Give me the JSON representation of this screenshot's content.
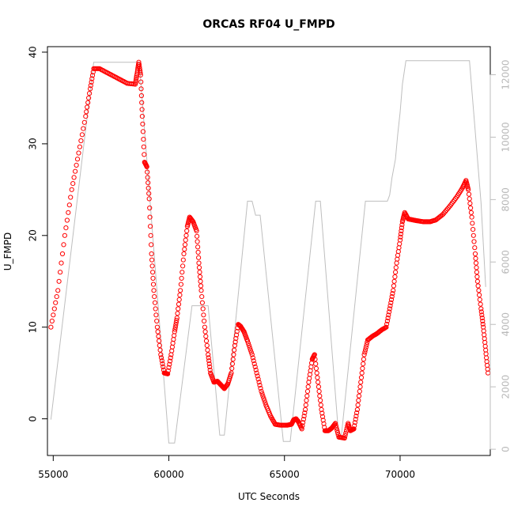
{
  "chart_data": {
    "type": "line",
    "title": "ORCAS RF04 U_FMPD",
    "xlabel": "UTC Seconds",
    "ylabel": "U_FMPD",
    "xlim": [
      54750,
      73900
    ],
    "ylim": [
      -4,
      40.6
    ],
    "y2lim": [
      -200,
      12900
    ],
    "x_ticks": [
      55000,
      60000,
      65000,
      70000
    ],
    "y_ticks": [
      0,
      10,
      20,
      30,
      40
    ],
    "y2_ticks": [
      0,
      2000,
      4000,
      6000,
      8000,
      10000,
      12000
    ],
    "colors": {
      "primary": "#ff0000",
      "secondary": "#bebebe"
    },
    "series": [
      {
        "axis": "left",
        "style": "circles",
        "points": [
          [
            54900,
            10
          ],
          [
            55200,
            14
          ],
          [
            55500,
            20
          ],
          [
            55800,
            25
          ],
          [
            56100,
            29
          ],
          [
            56400,
            33
          ],
          [
            56600,
            36
          ],
          [
            56750,
            38.2
          ],
          [
            57000,
            38.2
          ],
          [
            57300,
            37.8
          ],
          [
            57600,
            37.4
          ],
          [
            57900,
            37
          ],
          [
            58200,
            36.6
          ],
          [
            58550,
            36.5
          ],
          [
            58620,
            37.6
          ],
          [
            58700,
            38.9
          ],
          [
            58780,
            37.5
          ],
          [
            58850,
            33
          ],
          [
            58950,
            28
          ],
          [
            59050,
            27.5
          ],
          [
            59150,
            24
          ],
          [
            59250,
            18
          ],
          [
            59350,
            14
          ],
          [
            59500,
            10
          ],
          [
            59650,
            7
          ],
          [
            59800,
            5
          ],
          [
            59950,
            4.9
          ],
          [
            60100,
            7
          ],
          [
            60250,
            9.5
          ],
          [
            60350,
            11
          ],
          [
            60500,
            14
          ],
          [
            60650,
            18
          ],
          [
            60800,
            21
          ],
          [
            60900,
            22
          ],
          [
            61050,
            21.5
          ],
          [
            61200,
            20.5
          ],
          [
            61300,
            17
          ],
          [
            61400,
            14
          ],
          [
            61550,
            10
          ],
          [
            61700,
            7
          ],
          [
            61800,
            5
          ],
          [
            61950,
            4
          ],
          [
            62100,
            4.1
          ],
          [
            62250,
            3.7
          ],
          [
            62400,
            3.3
          ],
          [
            62550,
            3.8
          ],
          [
            62700,
            5
          ],
          [
            62850,
            8
          ],
          [
            63000,
            10.3
          ],
          [
            63100,
            10.1
          ],
          [
            63250,
            9.5
          ],
          [
            63400,
            8.5
          ],
          [
            63600,
            7
          ],
          [
            63800,
            5
          ],
          [
            64000,
            3
          ],
          [
            64200,
            1.5
          ],
          [
            64400,
            0.3
          ],
          [
            64600,
            -0.6
          ],
          [
            64850,
            -0.7
          ],
          [
            65100,
            -0.7
          ],
          [
            65300,
            -0.6
          ],
          [
            65400,
            -0.1
          ],
          [
            65500,
            0
          ],
          [
            65600,
            -0.3
          ],
          [
            65750,
            -1.1
          ],
          [
            65900,
            1
          ],
          [
            66050,
            4
          ],
          [
            66200,
            6.5
          ],
          [
            66300,
            7
          ],
          [
            66450,
            4
          ],
          [
            66600,
            1
          ],
          [
            66750,
            -1.3
          ],
          [
            66900,
            -1.3
          ],
          [
            67050,
            -1
          ],
          [
            67200,
            -0.5
          ],
          [
            67350,
            -2
          ],
          [
            67600,
            -2.1
          ],
          [
            67750,
            -0.5
          ],
          [
            67850,
            -1.3
          ],
          [
            68000,
            -1.1
          ],
          [
            68150,
            1
          ],
          [
            68300,
            4
          ],
          [
            68450,
            7
          ],
          [
            68600,
            8.6
          ],
          [
            68800,
            9
          ],
          [
            69000,
            9.3
          ],
          [
            69200,
            9.7
          ],
          [
            69400,
            10
          ],
          [
            69550,
            12
          ],
          [
            69700,
            14
          ],
          [
            69850,
            17
          ],
          [
            70000,
            19.5
          ],
          [
            70100,
            21.5
          ],
          [
            70200,
            22.5
          ],
          [
            70350,
            21.8
          ],
          [
            70550,
            21.7
          ],
          [
            70750,
            21.6
          ],
          [
            71000,
            21.5
          ],
          [
            71300,
            21.5
          ],
          [
            71550,
            21.7
          ],
          [
            71850,
            22.3
          ],
          [
            72150,
            23.2
          ],
          [
            72450,
            24.2
          ],
          [
            72700,
            25.2
          ],
          [
            72850,
            26
          ],
          [
            72950,
            25
          ],
          [
            73100,
            22
          ],
          [
            73250,
            18
          ],
          [
            73350,
            15
          ],
          [
            73500,
            12
          ],
          [
            73600,
            10
          ],
          [
            73700,
            7.5
          ],
          [
            73800,
            5
          ]
        ]
      },
      {
        "axis": "right",
        "style": "line",
        "points": [
          [
            54900,
            950
          ],
          [
            56750,
            12400
          ],
          [
            58600,
            12400
          ],
          [
            58720,
            12400
          ],
          [
            60000,
            200
          ],
          [
            60250,
            200
          ],
          [
            61000,
            4600
          ],
          [
            61700,
            4600
          ],
          [
            62200,
            450
          ],
          [
            62400,
            450
          ],
          [
            63400,
            7950
          ],
          [
            63600,
            7950
          ],
          [
            63750,
            7500
          ],
          [
            63950,
            7500
          ],
          [
            64950,
            250
          ],
          [
            65250,
            250
          ],
          [
            66350,
            7950
          ],
          [
            66550,
            7950
          ],
          [
            67350,
            350
          ],
          [
            67450,
            350
          ],
          [
            68500,
            7950
          ],
          [
            69450,
            7950
          ],
          [
            69550,
            8150
          ],
          [
            69650,
            8700
          ],
          [
            69800,
            9300
          ],
          [
            69900,
            10100
          ],
          [
            70000,
            10800
          ],
          [
            70100,
            11700
          ],
          [
            70250,
            12450
          ],
          [
            72950,
            12450
          ],
          [
            73000,
            12450
          ],
          [
            73500,
            7900
          ],
          [
            73700,
            5200
          ]
        ]
      }
    ]
  }
}
